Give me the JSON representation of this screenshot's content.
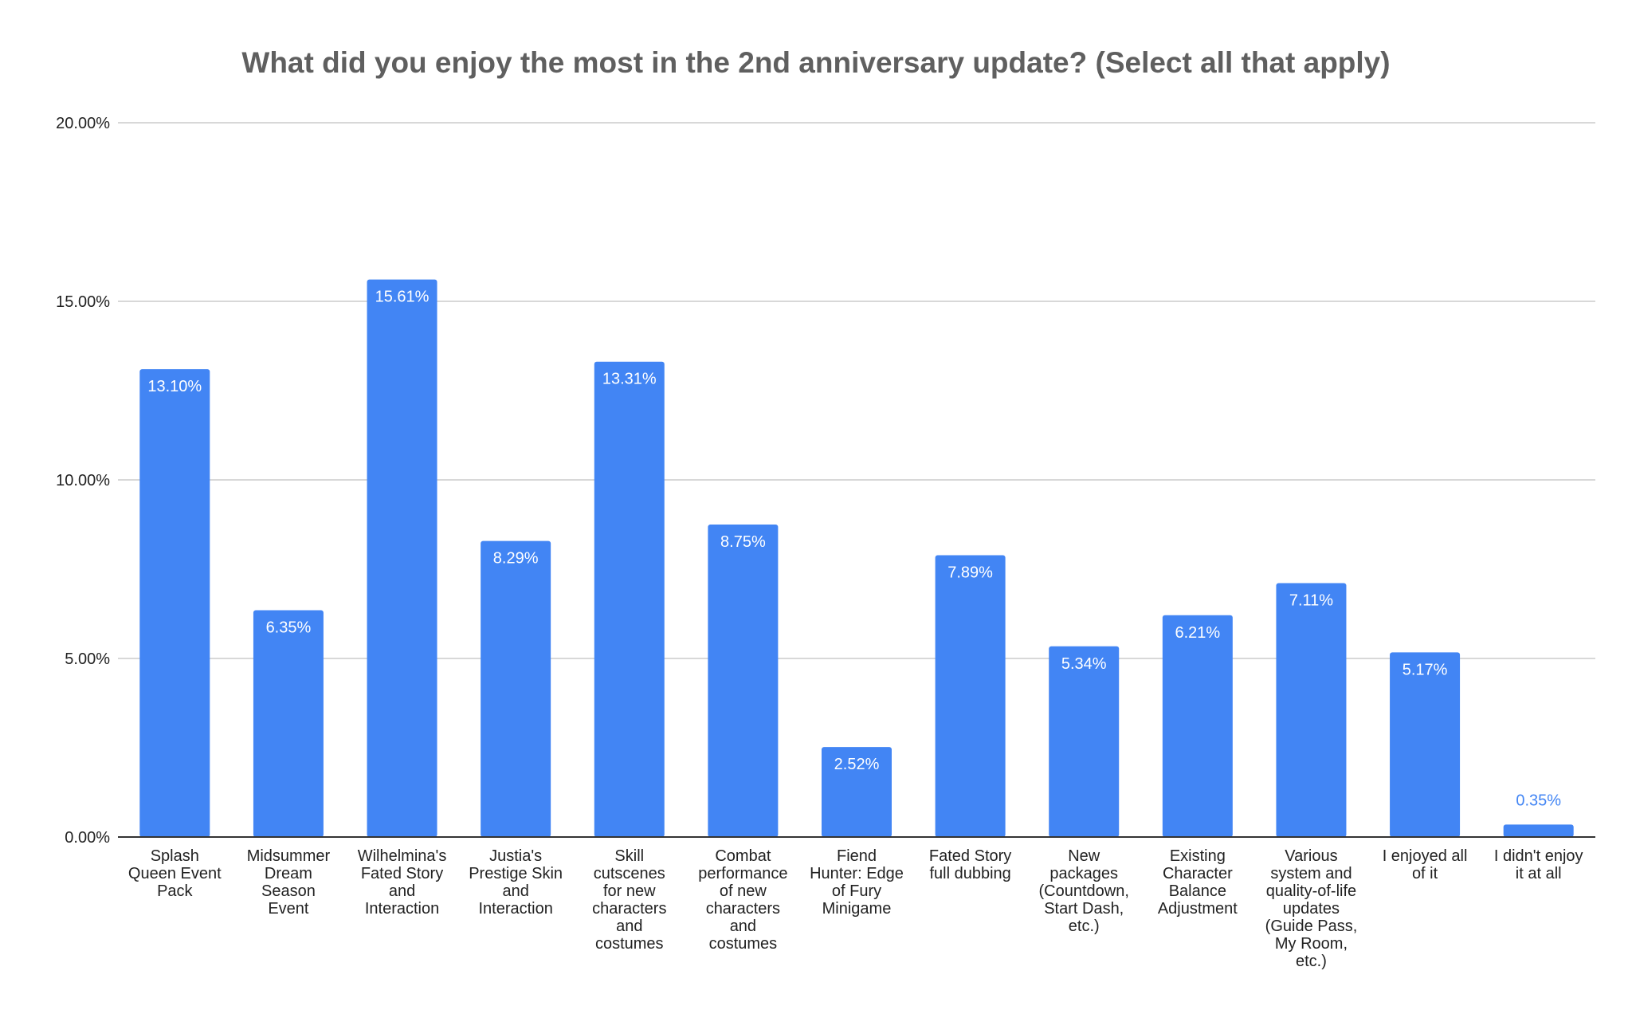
{
  "chart_data": {
    "type": "bar",
    "title": "What did you enjoy the most in the 2nd anniversary update? (Select all that apply)",
    "xlabel": "",
    "ylabel": "",
    "ylim": [
      0,
      20
    ],
    "grid": true,
    "y_ticks": [
      "0.00%",
      "5.00%",
      "10.00%",
      "15.00%",
      "20.00%"
    ],
    "y_tick_values": [
      0,
      5,
      10,
      15,
      20
    ],
    "categories": [
      [
        "Splash",
        "Queen Event",
        "Pack"
      ],
      [
        "Midsummer",
        "Dream",
        "Season",
        "Event"
      ],
      [
        "Wilhelmina's",
        "Fated Story",
        "and",
        "Interaction"
      ],
      [
        "Justia's",
        "Prestige Skin",
        "and",
        "Interaction"
      ],
      [
        "Skill",
        "cutscenes",
        "for new",
        "characters",
        "and",
        "costumes"
      ],
      [
        "Combat",
        "performance",
        "of new",
        "characters",
        "and",
        "costumes"
      ],
      [
        "Fiend",
        "Hunter: Edge",
        "of Fury",
        "Minigame"
      ],
      [
        "Fated Story",
        "full dubbing"
      ],
      [
        "New",
        "packages",
        "(Countdown,",
        "Start Dash,",
        "etc.)"
      ],
      [
        "Existing",
        "Character",
        "Balance",
        "Adjustment"
      ],
      [
        "Various",
        "system and",
        "quality-of-life",
        "updates",
        "(Guide Pass,",
        "My Room,",
        "etc.)"
      ],
      [
        "I enjoyed all",
        "of it"
      ],
      [
        "I didn't enjoy",
        "it at all"
      ]
    ],
    "values": [
      13.1,
      6.35,
      15.61,
      8.29,
      13.31,
      8.75,
      2.52,
      7.89,
      5.34,
      6.21,
      7.11,
      5.17,
      0.35
    ],
    "data_labels": [
      "13.10%",
      "6.35%",
      "15.61%",
      "8.29%",
      "13.31%",
      "8.75%",
      "2.52%",
      "7.89%",
      "5.34%",
      "6.21%",
      "7.11%",
      "5.17%",
      "0.35%"
    ],
    "colors": {
      "bar": "#4285f4",
      "label_inside": "#ffffff",
      "label_outside": "#4285f4",
      "grid": "#cccccc",
      "axis": "#333333",
      "text": "#222222",
      "title": "#5f5f5f"
    }
  }
}
